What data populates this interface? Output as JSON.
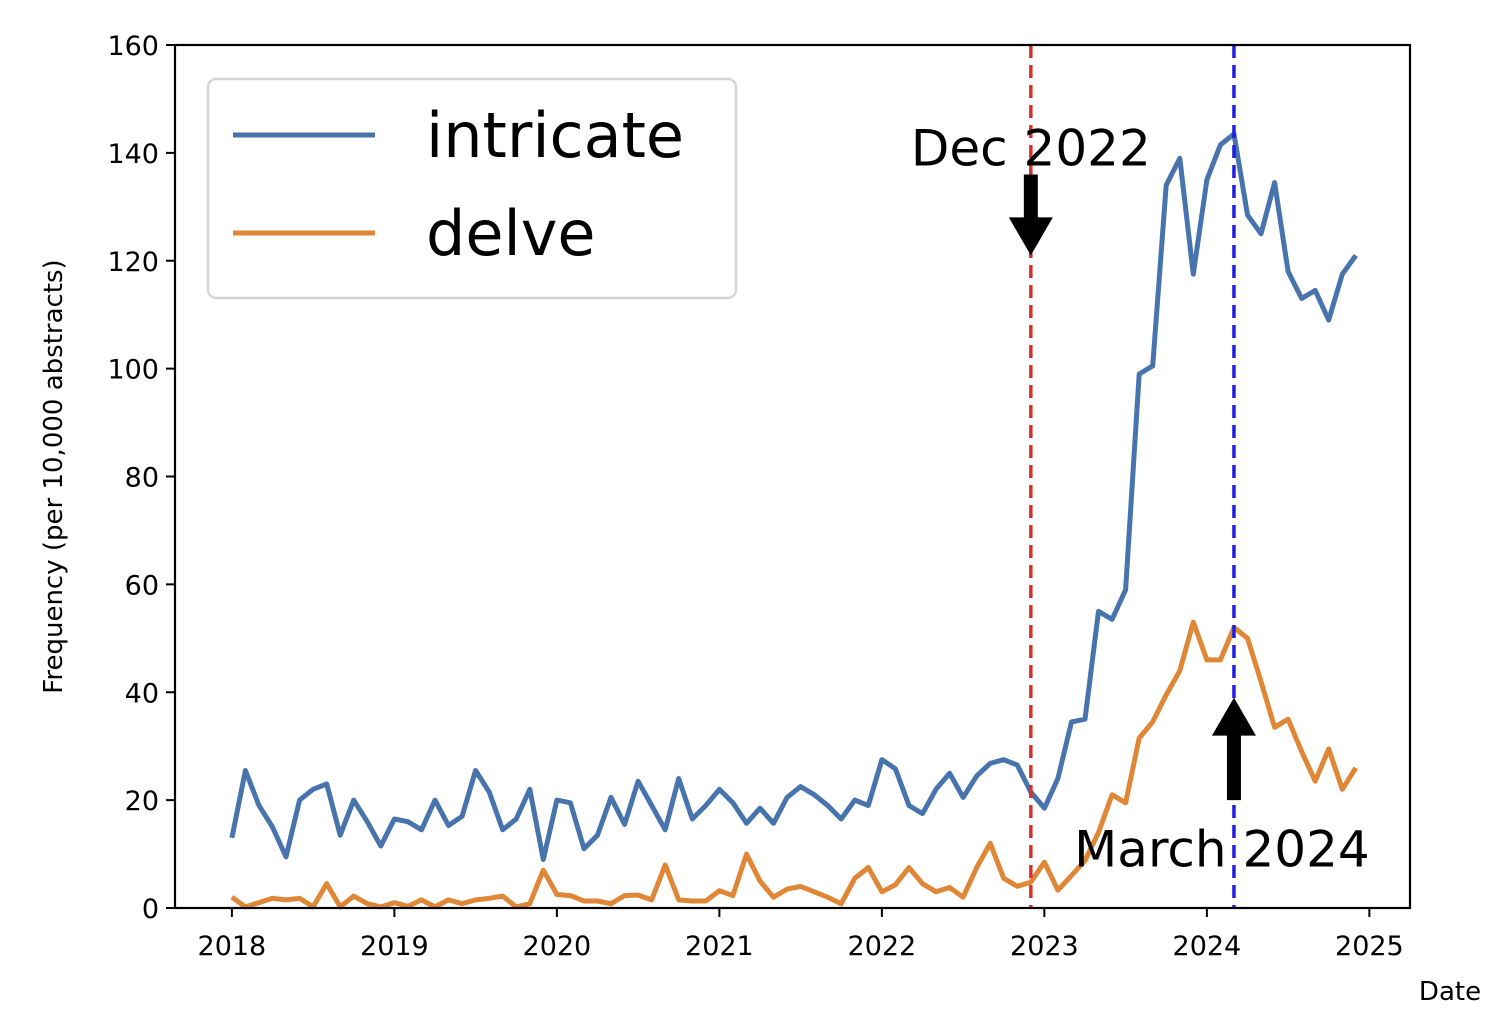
{
  "chart_data": {
    "type": "line",
    "xlabel": "Date",
    "ylabel": "Frequency (per 10,000 abstracts)",
    "xlim": [
      2017.65,
      2025.25
    ],
    "ylim": [
      0,
      160
    ],
    "x_ticks": [
      "2018",
      "2019",
      "2020",
      "2021",
      "2022",
      "2023",
      "2024",
      "2025"
    ],
    "y_ticks": [
      "0",
      "20",
      "40",
      "60",
      "80",
      "100",
      "120",
      "140",
      "160"
    ],
    "grid": false,
    "legend_position": "upper-left",
    "colors": {
      "intricate": "#4874ad",
      "delve": "#e08637",
      "dec_line": "#d9322a",
      "mar_line": "#1f1fe0"
    },
    "series": [
      {
        "name": "intricate",
        "color": "#4874ad",
        "x": [
          "2018-01",
          "2018-02",
          "2018-03",
          "2018-04",
          "2018-05",
          "2018-06",
          "2018-07",
          "2018-08",
          "2018-09",
          "2018-10",
          "2018-11",
          "2018-12",
          "2019-01",
          "2019-02",
          "2019-03",
          "2019-04",
          "2019-05",
          "2019-06",
          "2019-07",
          "2019-08",
          "2019-09",
          "2019-10",
          "2019-11",
          "2019-12",
          "2020-01",
          "2020-02",
          "2020-03",
          "2020-04",
          "2020-05",
          "2020-06",
          "2020-07",
          "2020-08",
          "2020-09",
          "2020-10",
          "2020-11",
          "2020-12",
          "2021-01",
          "2021-02",
          "2021-03",
          "2021-04",
          "2021-05",
          "2021-06",
          "2021-07",
          "2021-08",
          "2021-09",
          "2021-10",
          "2021-11",
          "2021-12",
          "2022-01",
          "2022-02",
          "2022-03",
          "2022-04",
          "2022-05",
          "2022-06",
          "2022-07",
          "2022-08",
          "2022-09",
          "2022-10",
          "2022-11",
          "2022-12",
          "2023-01",
          "2023-02",
          "2023-03",
          "2023-04",
          "2023-05",
          "2023-06",
          "2023-07",
          "2023-08",
          "2023-09",
          "2023-10",
          "2023-11",
          "2023-12",
          "2024-01",
          "2024-02",
          "2024-03",
          "2024-04",
          "2024-05",
          "2024-06",
          "2024-07",
          "2024-08",
          "2024-09",
          "2024-10",
          "2024-11",
          "2024-12"
        ],
        "values": [
          13,
          25.5,
          19,
          15,
          9.5,
          20,
          22,
          23,
          13.5,
          20,
          16,
          11.5,
          16.5,
          16,
          14.5,
          20,
          15.3,
          17,
          25.5,
          21.5,
          14.5,
          16.5,
          22,
          9,
          20,
          19.5,
          11,
          13.5,
          20.5,
          15.5,
          23.5,
          19,
          14.5,
          24,
          16.5,
          19,
          22,
          19.5,
          15.7,
          18.5,
          15.7,
          20.5,
          22.5,
          21,
          19,
          16.5,
          20,
          19,
          27.5,
          25.8,
          19,
          17.5,
          22,
          25,
          20.5,
          24.5,
          26.8,
          27.5,
          26.5,
          21.5,
          18.5,
          24,
          34.5,
          35,
          55,
          53.5,
          59,
          99,
          100.5,
          134,
          139,
          117.5,
          135,
          141.5,
          143.5,
          128.5,
          125,
          134.5,
          118,
          113,
          114.5,
          109,
          117.5,
          121
        ]
      },
      {
        "name": "delve",
        "color": "#e08637",
        "x": [
          "2018-01",
          "2018-02",
          "2018-03",
          "2018-04",
          "2018-05",
          "2018-06",
          "2018-07",
          "2018-08",
          "2018-09",
          "2018-10",
          "2018-11",
          "2018-12",
          "2019-01",
          "2019-02",
          "2019-03",
          "2019-04",
          "2019-05",
          "2019-06",
          "2019-07",
          "2019-08",
          "2019-09",
          "2019-10",
          "2019-11",
          "2019-12",
          "2020-01",
          "2020-02",
          "2020-03",
          "2020-04",
          "2020-05",
          "2020-06",
          "2020-07",
          "2020-08",
          "2020-09",
          "2020-10",
          "2020-11",
          "2020-12",
          "2021-01",
          "2021-02",
          "2021-03",
          "2021-04",
          "2021-05",
          "2021-06",
          "2021-07",
          "2021-08",
          "2021-09",
          "2021-10",
          "2021-11",
          "2021-12",
          "2022-01",
          "2022-02",
          "2022-03",
          "2022-04",
          "2022-05",
          "2022-06",
          "2022-07",
          "2022-08",
          "2022-09",
          "2022-10",
          "2022-11",
          "2022-12",
          "2023-01",
          "2023-02",
          "2023-03",
          "2023-04",
          "2023-05",
          "2023-06",
          "2023-07",
          "2023-08",
          "2023-09",
          "2023-10",
          "2023-11",
          "2023-12",
          "2024-01",
          "2024-02",
          "2024-03",
          "2024-04",
          "2024-05",
          "2024-06",
          "2024-07",
          "2024-08",
          "2024-09",
          "2024-10",
          "2024-11",
          "2024-12"
        ],
        "values": [
          2,
          0.2,
          1,
          1.8,
          1.5,
          1.8,
          0.2,
          4.5,
          0.2,
          2.2,
          0.8,
          0.2,
          1,
          0.3,
          1.5,
          0.2,
          1.5,
          0.8,
          1.5,
          1.8,
          2.2,
          0.2,
          0.8,
          7,
          2.5,
          2.3,
          1.3,
          1.3,
          0.8,
          2.3,
          2.4,
          1.5,
          8,
          1.5,
          1.3,
          1.3,
          3.2,
          2.3,
          10,
          5,
          2,
          3.5,
          4,
          3,
          2,
          0.8,
          5.5,
          7.5,
          3,
          4.3,
          7.5,
          4.5,
          3,
          3.8,
          2,
          7.5,
          12,
          5.5,
          4,
          4.8,
          8.5,
          3.3,
          6,
          8.8,
          14,
          21,
          19.5,
          31.5,
          34.5,
          39.5,
          44,
          53,
          46,
          46,
          52,
          50,
          42,
          33.5,
          35,
          29,
          23.5,
          29.5,
          22,
          26
        ]
      }
    ],
    "vertical_lines": [
      {
        "x": "2022-12",
        "color": "#d9322a",
        "style": "dashed"
      },
      {
        "x": "2024-03",
        "color": "#1f1fe0",
        "style": "dashed"
      }
    ],
    "annotations": [
      {
        "text": "Dec 2022",
        "x": "2022-12",
        "arrow": "down",
        "arrow_from_y": 136,
        "arrow_to_y": 121,
        "text_y": 141
      },
      {
        "text": "March 2024",
        "x": "2024-03",
        "arrow": "up",
        "arrow_from_y": 20,
        "arrow_to_y": 39,
        "text_y": 11
      }
    ]
  }
}
